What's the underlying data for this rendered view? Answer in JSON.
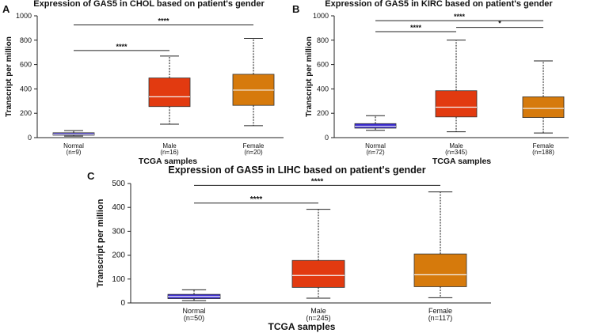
{
  "chart_data": [
    {
      "panel": "A",
      "type": "box",
      "title": "Expression of GAS5 in CHOL based on patient's gender",
      "xlabel": "TCGA samples",
      "ylabel": "Transcript per million",
      "ylim": [
        0,
        1000
      ],
      "yticks": [
        0,
        200,
        400,
        600,
        800,
        1000
      ],
      "categories": [
        {
          "name": "Normal",
          "n": "(n=9)",
          "min": 12,
          "q1": 20,
          "median": 28,
          "q3": 40,
          "max": 58,
          "color": "#3a2bd0"
        },
        {
          "name": "Male",
          "n": "(n=16)",
          "min": 110,
          "q1": 255,
          "median": 335,
          "q3": 490,
          "max": 670,
          "color": "#e23a10"
        },
        {
          "name": "Female",
          "n": "(n=20)",
          "min": 98,
          "q1": 265,
          "median": 390,
          "q3": 520,
          "max": 815,
          "color": "#d67a0c"
        }
      ],
      "significance": [
        {
          "from": 0,
          "to": 1,
          "label": "****",
          "y": 715
        },
        {
          "from": 0,
          "to": 2,
          "label": "****",
          "y": 925
        }
      ]
    },
    {
      "panel": "B",
      "type": "box",
      "title": "Expression of GAS5 in KIRC based on patient's gender",
      "xlabel": "TCGA samples",
      "ylabel": "Transcript per million",
      "ylim": [
        0,
        1000
      ],
      "yticks": [
        0,
        200,
        400,
        600,
        800,
        1000
      ],
      "categories": [
        {
          "name": "Normal",
          "n": "(n=72)",
          "min": 60,
          "q1": 78,
          "median": 93,
          "q3": 115,
          "max": 180,
          "color": "#3a2bd0"
        },
        {
          "name": "Male",
          "n": "(n=345)",
          "min": 48,
          "q1": 170,
          "median": 250,
          "q3": 385,
          "max": 800,
          "color": "#e23a10"
        },
        {
          "name": "Female",
          "n": "(n=188)",
          "min": 38,
          "q1": 165,
          "median": 240,
          "q3": 335,
          "max": 630,
          "color": "#d67a0c"
        }
      ],
      "significance": [
        {
          "from": 0,
          "to": 1,
          "label": "****",
          "y": 870
        },
        {
          "from": 0,
          "to": 2,
          "label": "****",
          "y": 960
        },
        {
          "from": 1,
          "to": 2,
          "label": "*",
          "y": 905
        }
      ]
    },
    {
      "panel": "C",
      "type": "box",
      "title": "Expression of GAS5 in LIHC based on patient's gender",
      "xlabel": "TCGA samples",
      "ylabel": "Transcript per million",
      "ylim": [
        0,
        500
      ],
      "yticks": [
        0,
        100,
        200,
        300,
        400,
        500
      ],
      "categories": [
        {
          "name": "Normal",
          "n": "(n=50)",
          "min": 10,
          "q1": 18,
          "median": 27,
          "q3": 36,
          "max": 55,
          "color": "#3a2bd0"
        },
        {
          "name": "Male",
          "n": "(n=245)",
          "min": 20,
          "q1": 65,
          "median": 115,
          "q3": 178,
          "max": 392,
          "color": "#e23a10"
        },
        {
          "name": "Female",
          "n": "(n=117)",
          "min": 22,
          "q1": 68,
          "median": 118,
          "q3": 205,
          "max": 465,
          "color": "#d67a0c"
        }
      ],
      "significance": [
        {
          "from": 0,
          "to": 1,
          "label": "****",
          "y": 418
        },
        {
          "from": 0,
          "to": 2,
          "label": "****",
          "y": 492
        }
      ]
    }
  ]
}
